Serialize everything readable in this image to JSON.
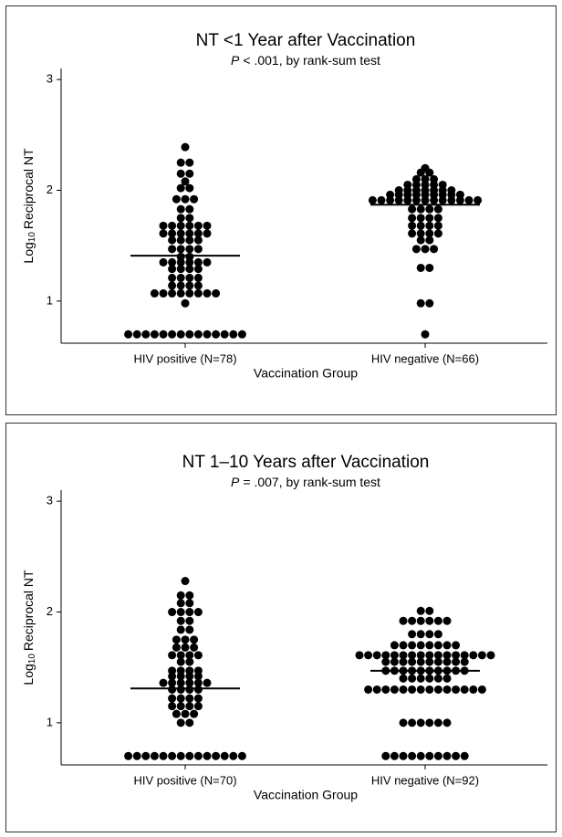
{
  "chart_data": [
    {
      "type": "dotplot",
      "title": "NT <1 Year after Vaccination",
      "subtitle_italic": "P",
      "subtitle": "< .001, by rank-sum  test",
      "y_label_base": "Log",
      "y_label_subscript": "10",
      "y_label": "Reciprocal NT",
      "x_label": "Vaccination Group",
      "categories": [
        "HIV positive (N=78)",
        "HIV negative (N=66)"
      ],
      "color": "#000000",
      "ylim": [
        0.62,
        3.1
      ],
      "yticks": [
        1,
        2,
        3
      ],
      "medians": [
        1.41,
        1.87
      ],
      "values": [
        [
          2.39,
          2.25,
          2.25,
          2.15,
          2.15,
          2.08,
          2.02,
          2.02,
          1.92,
          1.92,
          1.92,
          1.83,
          1.83,
          1.75,
          1.75,
          1.68,
          1.68,
          1.68,
          1.68,
          1.68,
          1.68,
          1.61,
          1.61,
          1.61,
          1.61,
          1.61,
          1.61,
          1.55,
          1.55,
          1.55,
          1.55,
          1.47,
          1.47,
          1.47,
          1.47,
          1.4,
          1.4,
          1.35,
          1.35,
          1.35,
          1.35,
          1.35,
          1.35,
          1.29,
          1.29,
          1.29,
          1.29,
          1.21,
          1.21,
          1.21,
          1.21,
          1.14,
          1.14,
          1.14,
          1.14,
          1.07,
          1.07,
          1.07,
          1.07,
          1.07,
          1.07,
          1.07,
          1.07,
          0.98,
          0.7,
          0.7,
          0.7,
          0.7,
          0.7,
          0.7,
          0.7,
          0.7,
          0.7,
          0.7,
          0.7,
          0.7,
          0.7,
          0.7
        ],
        [
          2.2,
          2.16,
          2.16,
          2.1,
          2.1,
          2.1,
          2.05,
          2.05,
          2.05,
          2.05,
          2.05,
          2,
          2,
          2,
          2,
          2,
          2,
          2,
          1.96,
          1.96,
          1.96,
          1.96,
          1.96,
          1.96,
          1.96,
          1.96,
          1.96,
          1.91,
          1.91,
          1.91,
          1.91,
          1.91,
          1.91,
          1.91,
          1.91,
          1.91,
          1.91,
          1.91,
          1.91,
          1.91,
          1.83,
          1.83,
          1.83,
          1.83,
          1.75,
          1.75,
          1.75,
          1.75,
          1.68,
          1.68,
          1.68,
          1.68,
          1.61,
          1.61,
          1.61,
          1.61,
          1.55,
          1.55,
          1.47,
          1.47,
          1.47,
          1.3,
          1.3,
          0.98,
          0.98,
          0.7
        ]
      ]
    },
    {
      "type": "dotplot",
      "title": "NT 1–10 Years after Vaccination",
      "subtitle_italic": "P",
      "subtitle": "= .007, by rank-sum test",
      "y_label_base": "Log",
      "y_label_subscript": "10",
      "y_label": "Reciprocal NT",
      "x_label": "Vaccination Group",
      "categories": [
        "HIV positive (N=70)",
        "HIV negative (N=92)"
      ],
      "color": "#000000",
      "ylim": [
        0.62,
        3.1
      ],
      "yticks": [
        1,
        2,
        3
      ],
      "medians": [
        1.31,
        1.47
      ],
      "values": [
        [
          2.28,
          2.15,
          2.15,
          2.08,
          2.08,
          2,
          2,
          2,
          2,
          1.92,
          1.92,
          1.84,
          1.84,
          1.75,
          1.75,
          1.75,
          1.68,
          1.68,
          1.68,
          1.61,
          1.61,
          1.61,
          1.61,
          1.55,
          1.55,
          1.47,
          1.47,
          1.47,
          1.47,
          1.42,
          1.42,
          1.42,
          1.42,
          1.36,
          1.36,
          1.36,
          1.36,
          1.36,
          1.36,
          1.3,
          1.3,
          1.3,
          1.3,
          1.22,
          1.22,
          1.22,
          1.22,
          1.15,
          1.15,
          1.15,
          1.15,
          1.08,
          1.08,
          1.08,
          1,
          1,
          0.7,
          0.7,
          0.7,
          0.7,
          0.7,
          0.7,
          0.7,
          0.7,
          0.7,
          0.7,
          0.7,
          0.7,
          0.7,
          0.7
        ],
        [
          2.01,
          2.01,
          1.92,
          1.92,
          1.92,
          1.92,
          1.92,
          1.92,
          1.8,
          1.8,
          1.8,
          1.8,
          1.7,
          1.7,
          1.7,
          1.7,
          1.7,
          1.7,
          1.7,
          1.7,
          1.61,
          1.61,
          1.61,
          1.61,
          1.61,
          1.61,
          1.61,
          1.61,
          1.61,
          1.61,
          1.61,
          1.61,
          1.61,
          1.61,
          1.61,
          1.61,
          1.55,
          1.55,
          1.55,
          1.55,
          1.55,
          1.55,
          1.55,
          1.55,
          1.55,
          1.55,
          1.47,
          1.47,
          1.47,
          1.47,
          1.47,
          1.47,
          1.47,
          1.47,
          1.47,
          1.47,
          1.4,
          1.4,
          1.4,
          1.4,
          1.4,
          1.4,
          1.3,
          1.3,
          1.3,
          1.3,
          1.3,
          1.3,
          1.3,
          1.3,
          1.3,
          1.3,
          1.3,
          1.3,
          1.3,
          1.3,
          1,
          1,
          1,
          1,
          1,
          1,
          0.7,
          0.7,
          0.7,
          0.7,
          0.7,
          0.7,
          0.7,
          0.7,
          0.7,
          0.7
        ]
      ]
    }
  ]
}
